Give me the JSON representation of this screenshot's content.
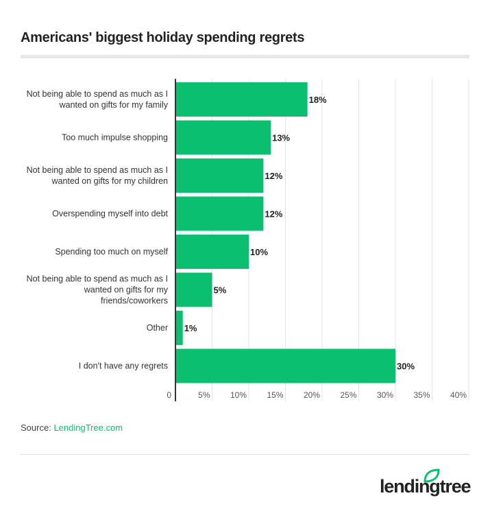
{
  "chart_data": {
    "type": "bar",
    "orientation": "horizontal",
    "title": "Americans' biggest holiday spending regrets",
    "categories": [
      "Not being able to spend as much as I wanted on gifts for my family",
      "Too much impulse shopping",
      "Not being able to spend as much as I wanted on gifts for my children",
      "Overspending myself into debt",
      "Spending too much on myself",
      "Not being able to spend as much as I wanted on gifts for my friends/coworkers",
      "Other",
      "I don't have any regrets"
    ],
    "category_lines": [
      [
        "Not being able to spend as much as I",
        "wanted on gifts for my family"
      ],
      [
        "Too much impulse shopping"
      ],
      [
        "Not being able to spend as much as I",
        "wanted on gifts for my children"
      ],
      [
        "Overspending myself into debt"
      ],
      [
        "Spending too much on myself"
      ],
      [
        "Not being able to spend as much as I",
        "wanted on gifts for my",
        "friends/coworkers"
      ],
      [
        "Other"
      ],
      [
        "I don't have any regrets"
      ]
    ],
    "values": [
      18,
      13,
      12,
      12,
      10,
      5,
      1,
      30
    ],
    "data_labels": [
      "18%",
      "13%",
      "12%",
      "12%",
      "10%",
      "5%",
      "1%",
      "30%"
    ],
    "xlim": [
      0,
      40
    ],
    "xticks": [
      "0",
      "5%",
      "10%",
      "15%",
      "20%",
      "25%",
      "30%",
      "35%",
      "40%"
    ],
    "grid": true,
    "bar_color": "#0bbf71"
  },
  "source": {
    "label": "Source:",
    "link": "LendingTree.com"
  },
  "logo": {
    "text": "lendingtree"
  }
}
